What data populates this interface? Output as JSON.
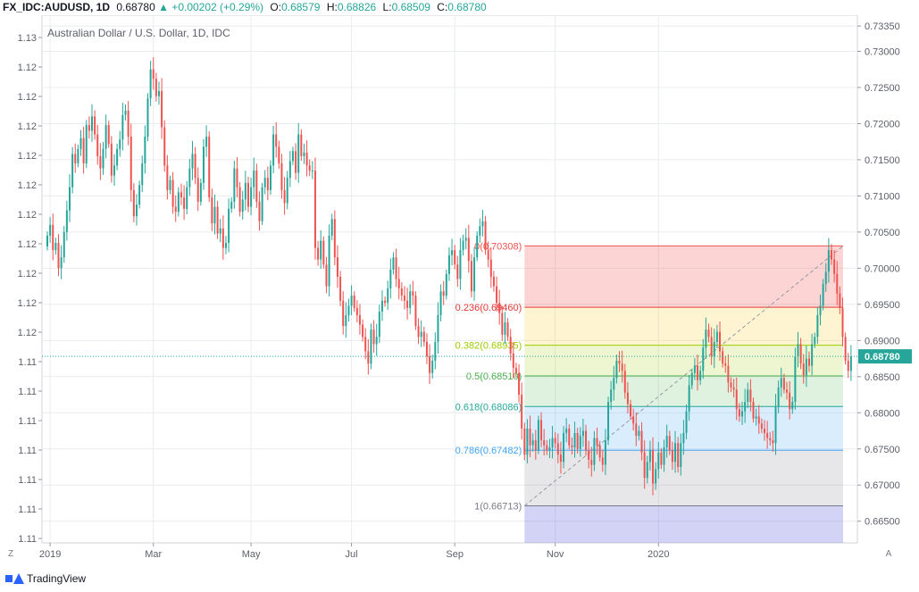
{
  "header": {
    "symbol": "FX_IDC:AUDUSD, 1D",
    "last": "0.68780",
    "change": "▲ +0.00202 (+0.29%)",
    "o_label": "O:",
    "o_value": "0.68579",
    "h_label": "H:",
    "h_value": "0.68826",
    "l_label": "L:",
    "l_value": "0.68509",
    "c_label": "C:",
    "c_value": "0.68780"
  },
  "footer": {
    "brand": "TradingView"
  },
  "corner": {
    "left": "Z",
    "right": "A"
  },
  "colors": {
    "up": "#26a69a",
    "down": "#ef5350",
    "price_line": "#26a69a",
    "grid": "#e9ecef"
  },
  "chart_data": {
    "type": "candlestick",
    "title": "Australian Dollar / U.S. Dollar, 1D, IDC",
    "left_axis_ticks": [
      "1.13",
      "1.12",
      "1.12",
      "1.12",
      "1.12",
      "1.12",
      "1.12",
      "1.12",
      "1.12",
      "1.12",
      "1.12",
      "1.11",
      "1.11",
      "1.11",
      "1.11",
      "1.11",
      "1.11",
      "1.11"
    ],
    "right_axis_ticks": [
      0.7335,
      0.73,
      0.725,
      0.72,
      0.715,
      0.71,
      0.705,
      0.7,
      0.695,
      0.69,
      0.685,
      0.68,
      0.675,
      0.67,
      0.665
    ],
    "right_axis_labels": [
      "0.73350",
      "0.73000",
      "0.72500",
      "0.72000",
      "0.71500",
      "0.71000",
      "0.70500",
      "0.70000",
      "0.69500",
      "0.69000",
      "0.68500",
      "0.68000",
      "0.67500",
      "0.67000",
      "0.66500"
    ],
    "x_labels": [
      "2019",
      "Mar",
      "May",
      "Jul",
      "Sep",
      "Nov",
      "2020"
    ],
    "x_label_index": [
      1,
      38,
      73,
      109,
      146,
      182,
      219
    ],
    "current_price": 0.6878,
    "current_price_label": "0.68780",
    "fib_labels": [
      "0(0.70308)",
      "0.236(0.69460)",
      "0.382(0.68935)",
      "0.5(0.68510)",
      "0.618(0.68086)",
      "0.786(0.67482)",
      "1(0.66713)"
    ],
    "fib_levels": [
      0.70308,
      0.6946,
      0.68935,
      0.6851,
      0.68086,
      0.67482,
      0.66713
    ],
    "fib_colors": [
      "#ef5350",
      "#e53935",
      "#9ccc00",
      "#4caf50",
      "#26a69a",
      "#42a5f5",
      "#787b86"
    ],
    "fib_fills": [
      "rgba(239,83,80,0.25)",
      "rgba(255,193,7,0.18)",
      "rgba(156,204,0,0.18)",
      "rgba(76,175,80,0.18)",
      "rgba(66,165,245,0.20)",
      "rgba(120,123,134,0.18)",
      "rgba(94,96,220,0.28)"
    ],
    "closes": [
      0.7045,
      0.706,
      0.7025,
      0.7035,
      0.7,
      0.7015,
      0.705,
      0.708,
      0.7112,
      0.7158,
      0.7145,
      0.7165,
      0.718,
      0.7145,
      0.7198,
      0.719,
      0.721,
      0.7185,
      0.7155,
      0.7138,
      0.7165,
      0.7198,
      0.7172,
      0.7128,
      0.7142,
      0.7165,
      0.7178,
      0.7212,
      0.7218,
      0.7182,
      0.7108,
      0.7072,
      0.7088,
      0.7115,
      0.7145,
      0.7182,
      0.7235,
      0.7275,
      0.7262,
      0.7238,
      0.7245,
      0.7195,
      0.7142,
      0.7108,
      0.7122,
      0.7085,
      0.7078,
      0.7105,
      0.7098,
      0.7082,
      0.7112,
      0.7138,
      0.7158,
      0.7125,
      0.7092,
      0.7118,
      0.7168,
      0.7182,
      0.7098,
      0.7062,
      0.7085,
      0.7048,
      0.7055,
      0.7028,
      0.7035,
      0.7082,
      0.7092,
      0.7138,
      0.7112,
      0.7078,
      0.7095,
      0.7118,
      0.7085,
      0.7112,
      0.7135,
      0.7092,
      0.7065,
      0.7112,
      0.7125,
      0.7108,
      0.7142,
      0.7185,
      0.7168,
      0.7145,
      0.7108,
      0.709,
      0.7125,
      0.7148,
      0.7162,
      0.7132,
      0.7185,
      0.7155,
      0.716,
      0.7142,
      0.7135,
      0.7135,
      0.7028,
      0.7012,
      0.7038,
      0.7005,
      0.6975,
      0.7045,
      0.7068,
      0.7015,
      0.6988,
      0.6955,
      0.692,
      0.6935,
      0.6948,
      0.6962,
      0.6945,
      0.6935,
      0.6922,
      0.6905,
      0.6885,
      0.6868,
      0.6915,
      0.6895,
      0.6905,
      0.694,
      0.6955,
      0.6952,
      0.6972,
      0.6998,
      0.7015,
      0.6985,
      0.6972,
      0.6962,
      0.6955,
      0.6945,
      0.6968,
      0.6962,
      0.692,
      0.6905,
      0.6912,
      0.6898,
      0.6878,
      0.6855,
      0.6872,
      0.6898,
      0.6935,
      0.6968,
      0.6962,
      0.6992,
      0.7018,
      0.7025,
      0.7005,
      0.6985,
      0.7025,
      0.7038,
      0.7042,
      0.701,
      0.6968,
      0.7015,
      0.7045,
      0.7058,
      0.7065,
      0.7025,
      0.7012,
      0.6988,
      0.6975,
      0.6952,
      0.6938,
      0.6908,
      0.6925,
      0.6905,
      0.6882,
      0.6862,
      0.6855,
      0.6825,
      0.6778,
      0.6742,
      0.6778,
      0.6755,
      0.6762,
      0.6748,
      0.679,
      0.6762,
      0.6755,
      0.6748,
      0.6752,
      0.6765,
      0.6758,
      0.6742,
      0.6732,
      0.6772,
      0.6778,
      0.6755,
      0.6752,
      0.6772,
      0.675,
      0.6768,
      0.6775,
      0.6748,
      0.6735,
      0.6728,
      0.6765,
      0.6755,
      0.6738,
      0.6728,
      0.6762,
      0.6815,
      0.6832,
      0.6848,
      0.6872,
      0.6868,
      0.6858,
      0.6828,
      0.6812,
      0.6795,
      0.6785,
      0.6768,
      0.6775,
      0.6745,
      0.671,
      0.6732,
      0.6748,
      0.6702,
      0.6722,
      0.6745,
      0.6728,
      0.6752,
      0.6768,
      0.6748,
      0.6732,
      0.6758,
      0.6725,
      0.6758,
      0.6772,
      0.6802,
      0.6838,
      0.6855,
      0.6865,
      0.6845,
      0.6858,
      0.689,
      0.6915,
      0.6905,
      0.6878,
      0.6898,
      0.6912,
      0.6885,
      0.6868,
      0.6865,
      0.6842,
      0.6835,
      0.6832,
      0.6805,
      0.6795,
      0.6802,
      0.6815,
      0.6832,
      0.6815,
      0.6792,
      0.6795,
      0.6785,
      0.6778,
      0.6772,
      0.6765,
      0.6762,
      0.6758,
      0.6808,
      0.6835,
      0.6848,
      0.6832,
      0.6828,
      0.6805,
      0.6815,
      0.6878,
      0.6895,
      0.6868,
      0.6852,
      0.6875,
      0.6865,
      0.6895,
      0.6905,
      0.6935,
      0.6948,
      0.6978,
      0.6995,
      0.7025,
      0.7012,
      0.6992,
      0.6965,
      0.6945,
      0.6905,
      0.6872,
      0.6858,
      0.6878
    ]
  }
}
